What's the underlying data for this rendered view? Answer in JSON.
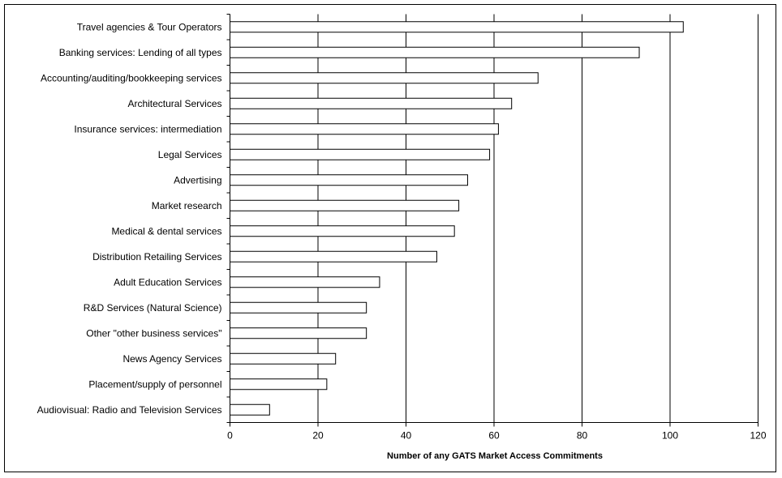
{
  "chart_data": {
    "type": "bar",
    "orientation": "horizontal",
    "title": "",
    "xlabel": "Number of any GATS Market Access Commitments",
    "ylabel": "",
    "xlim": [
      0,
      120
    ],
    "xticks": [
      0,
      20,
      40,
      60,
      80,
      100,
      120
    ],
    "grid": "vertical gridlines on",
    "legend": "none",
    "bar_fill": "#ffffff",
    "bar_stroke": "#000000",
    "categories": [
      "Travel agencies & Tour Operators",
      "Banking services: Lending of all types",
      "Accounting/auditing/bookkeeping services",
      "Architectural Services",
      "Insurance services: intermediation",
      "Legal Services",
      "Advertising ",
      "Market research ",
      "Medical & dental services",
      "Distribution Retailing Services",
      "Adult Education Services",
      "R&D Services (Natural Science)",
      "Other \"other business services\"",
      "News Agency Services",
      "Placement/supply of personnel",
      "Audiovisual: Radio and Television Services"
    ],
    "values": [
      103,
      93,
      70,
      64,
      61,
      59,
      54,
      52,
      51,
      47,
      34,
      31,
      31,
      24,
      22,
      9
    ]
  }
}
